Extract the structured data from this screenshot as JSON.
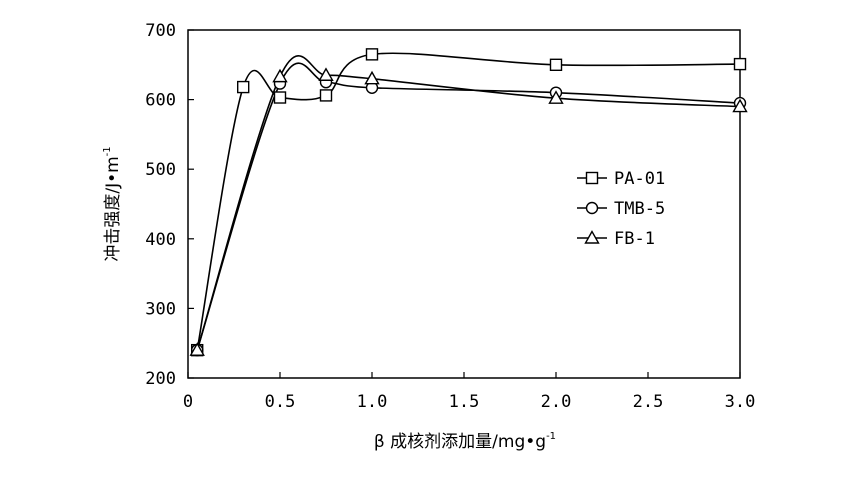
{
  "chart_data": {
    "type": "line",
    "xlabel": {
      "main": "β 成核剂添加量/mg•g",
      "sup": "-1"
    },
    "ylabel": {
      "main": "冲击强度/J•m",
      "sup": "-1"
    },
    "xlim": [
      0,
      3.0
    ],
    "ylim": [
      200,
      700
    ],
    "xticks": [
      0,
      0.5,
      1.0,
      1.5,
      2.0,
      2.5,
      3.0
    ],
    "xtick_labels": [
      "0",
      "0.5",
      "1.0",
      "1.5",
      "2.0",
      "2.5",
      "3.0"
    ],
    "yticks": [
      200,
      300,
      400,
      500,
      600,
      700
    ],
    "ytick_labels": [
      "200",
      "300",
      "400",
      "500",
      "600",
      "700"
    ],
    "legend_position": "right",
    "series": [
      {
        "name": "PA-01",
        "marker": "square",
        "x": [
          0.05,
          0.3,
          0.5,
          0.75,
          1.0,
          2.0,
          3.0
        ],
        "y": [
          240,
          618,
          603,
          606,
          665,
          650,
          651
        ]
      },
      {
        "name": "TMB-5",
        "marker": "circle",
        "x": [
          0.05,
          0.5,
          0.75,
          1.0,
          2.0,
          3.0
        ],
        "y": [
          240,
          623,
          625,
          617,
          610,
          595
        ]
      },
      {
        "name": "FB-1",
        "marker": "triangle",
        "x": [
          0.05,
          0.5,
          0.75,
          1.0,
          2.0,
          3.0
        ],
        "y": [
          240,
          633,
          635,
          630,
          602,
          590
        ]
      }
    ]
  }
}
